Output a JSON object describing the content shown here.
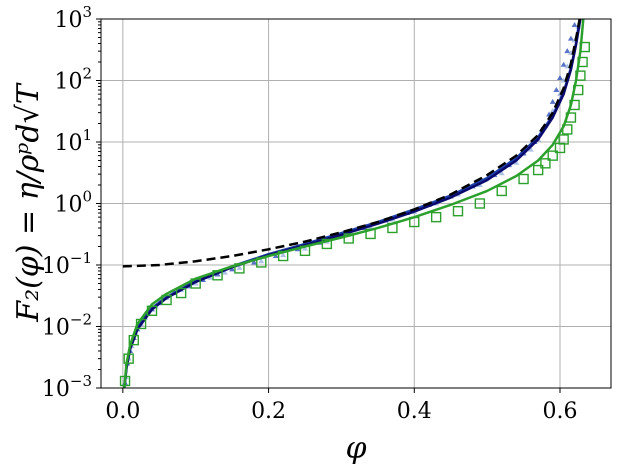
{
  "chart_data": {
    "type": "scatter",
    "xlabel": "φ",
    "ylabel": "F₂(φ) = η/ρᵖd√T",
    "xlim": [
      -0.03,
      0.67
    ],
    "ylim": [
      0.001,
      1000
    ],
    "yscale": "log",
    "grid": true,
    "x_ticks": [
      0.0,
      0.2,
      0.4,
      0.6
    ],
    "x_tick_labels": [
      "0.0",
      "0.2",
      "0.4",
      "0.6"
    ],
    "y_ticks": [
      0.001,
      0.01,
      0.1,
      1,
      10,
      100,
      1000
    ],
    "y_tick_labels": [
      {
        "base": "10",
        "exp": "−3"
      },
      {
        "base": "10",
        "exp": "−2"
      },
      {
        "base": "10",
        "exp": "−1"
      },
      {
        "base": "10",
        "exp": "0"
      },
      {
        "base": "10",
        "exp": "1"
      },
      {
        "base": "10",
        "exp": "2"
      },
      {
        "base": "10",
        "exp": "3"
      }
    ],
    "series": [
      {
        "style": "dashed-line",
        "color": "#000000",
        "x": [
          0.0,
          0.05,
          0.1,
          0.15,
          0.2,
          0.25,
          0.3,
          0.35,
          0.4,
          0.45,
          0.5,
          0.54,
          0.57,
          0.59,
          0.605,
          0.615,
          0.622,
          0.627
        ],
        "y": [
          0.095,
          0.1,
          0.115,
          0.14,
          0.18,
          0.24,
          0.34,
          0.5,
          0.8,
          1.4,
          2.9,
          6.0,
          13,
          30,
          75,
          190,
          480,
          1000
        ]
      },
      {
        "style": "solid-line",
        "color": "#1f3fa8",
        "x": [
          0.002,
          0.005,
          0.01,
          0.02,
          0.04,
          0.06,
          0.1,
          0.15,
          0.2,
          0.25,
          0.3,
          0.35,
          0.4,
          0.45,
          0.5,
          0.54,
          0.57,
          0.59,
          0.605,
          0.615,
          0.622,
          0.627
        ],
        "y": [
          0.001,
          0.0022,
          0.0045,
          0.0095,
          0.02,
          0.03,
          0.055,
          0.095,
          0.15,
          0.22,
          0.33,
          0.5,
          0.8,
          1.35,
          2.6,
          5.5,
          12,
          27,
          65,
          160,
          400,
          1000
        ]
      },
      {
        "style": "solid-line",
        "color": "#0a0a6e",
        "x": [
          0.002,
          0.005,
          0.01,
          0.02,
          0.04,
          0.06,
          0.1,
          0.15,
          0.2,
          0.25,
          0.3,
          0.35,
          0.4,
          0.45,
          0.5,
          0.54,
          0.57,
          0.59,
          0.605,
          0.615,
          0.622,
          0.628
        ],
        "y": [
          0.001,
          0.0021,
          0.0043,
          0.009,
          0.019,
          0.029,
          0.053,
          0.092,
          0.145,
          0.21,
          0.31,
          0.47,
          0.74,
          1.25,
          2.4,
          5.0,
          11,
          25,
          60,
          150,
          380,
          1000
        ]
      },
      {
        "style": "solid-line",
        "color": "#2ca02c",
        "x": [
          0.002,
          0.005,
          0.01,
          0.02,
          0.04,
          0.06,
          0.1,
          0.15,
          0.2,
          0.25,
          0.3,
          0.35,
          0.4,
          0.45,
          0.5,
          0.54,
          0.57,
          0.59,
          0.605,
          0.615,
          0.622,
          0.628,
          0.632
        ],
        "y": [
          0.001,
          0.0025,
          0.005,
          0.011,
          0.023,
          0.034,
          0.06,
          0.095,
          0.14,
          0.2,
          0.28,
          0.4,
          0.6,
          0.95,
          1.6,
          2.8,
          5.0,
          9.0,
          18,
          40,
          100,
          300,
          1000
        ]
      },
      {
        "style": "scatter-dots",
        "color": "#3050b8",
        "x": [
          0.003,
          0.006,
          0.01,
          0.015,
          0.02,
          0.03,
          0.04,
          0.05,
          0.07,
          0.09,
          0.11,
          0.13,
          0.15,
          0.18,
          0.21,
          0.24,
          0.27,
          0.3,
          0.33,
          0.36,
          0.39,
          0.42,
          0.45,
          0.48,
          0.51,
          0.53,
          0.55,
          0.565,
          0.575,
          0.585,
          0.59,
          0.595,
          0.6,
          0.605,
          0.61,
          0.615,
          0.62
        ],
        "y": [
          0.0012,
          0.0025,
          0.004,
          0.0065,
          0.009,
          0.014,
          0.019,
          0.024,
          0.035,
          0.045,
          0.057,
          0.07,
          0.085,
          0.11,
          0.14,
          0.18,
          0.23,
          0.3,
          0.4,
          0.53,
          0.7,
          0.95,
          1.3,
          1.9,
          2.9,
          4.2,
          6.5,
          10,
          16,
          28,
          45,
          70,
          110,
          180,
          300,
          480,
          800
        ]
      },
      {
        "style": "scatter-dots",
        "color": "#9ab3e0",
        "x": [
          0.004,
          0.008,
          0.012,
          0.018,
          0.025,
          0.035,
          0.045,
          0.06,
          0.08,
          0.1,
          0.12,
          0.14,
          0.16,
          0.19,
          0.22,
          0.25,
          0.28,
          0.31,
          0.34,
          0.37,
          0.4,
          0.43,
          0.46,
          0.49,
          0.52,
          0.54,
          0.56,
          0.57,
          0.58,
          0.59,
          0.6,
          0.605,
          0.61,
          0.615,
          0.62,
          0.625
        ],
        "y": [
          0.0015,
          0.003,
          0.0048,
          0.0075,
          0.011,
          0.016,
          0.021,
          0.029,
          0.039,
          0.05,
          0.062,
          0.075,
          0.09,
          0.115,
          0.145,
          0.185,
          0.24,
          0.31,
          0.41,
          0.55,
          0.73,
          1.0,
          1.4,
          2.0,
          3.1,
          4.6,
          7.5,
          11,
          18,
          32,
          60,
          100,
          170,
          280,
          450,
          750
        ]
      },
      {
        "style": "square-markers",
        "color": "#2ca02c",
        "x": [
          0.003,
          0.008,
          0.015,
          0.025,
          0.04,
          0.06,
          0.08,
          0.1,
          0.13,
          0.16,
          0.19,
          0.22,
          0.25,
          0.28,
          0.31,
          0.34,
          0.37,
          0.4,
          0.43,
          0.46,
          0.49,
          0.52,
          0.55,
          0.57,
          0.58,
          0.59,
          0.6,
          0.605,
          0.61,
          0.615,
          0.62,
          0.625,
          0.628,
          0.631,
          0.634
        ],
        "y": [
          0.0013,
          0.003,
          0.006,
          0.011,
          0.018,
          0.027,
          0.035,
          0.05,
          0.068,
          0.088,
          0.11,
          0.14,
          0.17,
          0.22,
          0.27,
          0.32,
          0.4,
          0.5,
          0.6,
          0.75,
          1.0,
          1.6,
          2.5,
          3.5,
          4.5,
          6.0,
          8.0,
          11,
          16,
          25,
          40,
          70,
          120,
          200,
          350
        ]
      }
    ]
  }
}
